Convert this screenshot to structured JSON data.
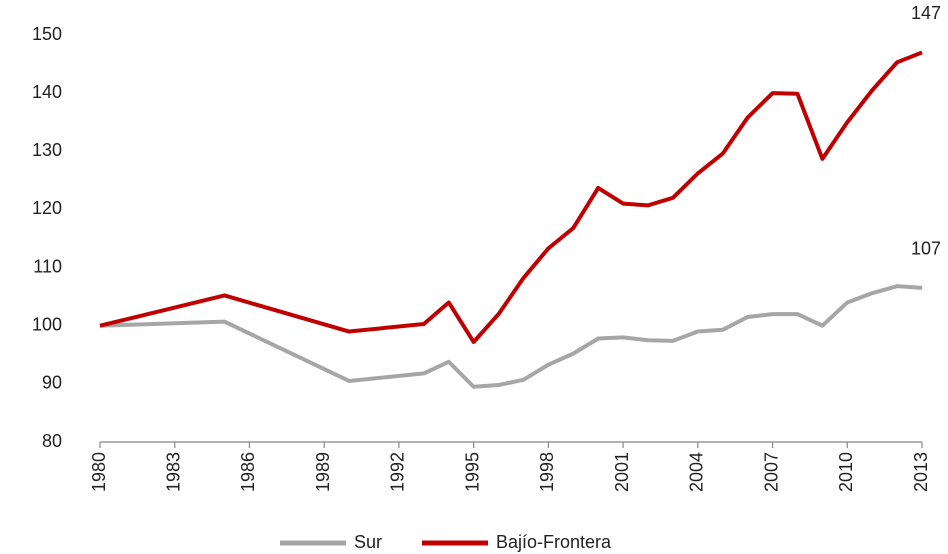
{
  "chart_data": {
    "type": "line",
    "x": [
      1980,
      1985,
      1990,
      1993,
      1994,
      1995,
      1996,
      1997,
      1998,
      1999,
      2000,
      2001,
      2002,
      2003,
      2004,
      2005,
      2006,
      2007,
      2008,
      2009,
      2010,
      2011,
      2012,
      2013
    ],
    "series": [
      {
        "name": "Sur",
        "color": "#a6a6a6",
        "values": [
          100,
          100.7,
          90.5,
          91.8,
          93.8,
          89.5,
          89.8,
          90.7,
          93.3,
          95.2,
          97.8,
          98,
          97.5,
          97.4,
          99,
          99.3,
          101.5,
          102,
          102,
          100,
          104,
          105.6,
          106.8,
          106.5
        ],
        "value_labels": [
          null,
          null,
          null,
          null,
          null,
          null,
          null,
          null,
          null,
          null,
          null,
          null,
          null,
          null,
          null,
          null,
          null,
          null,
          null,
          null,
          null,
          null,
          null,
          "107"
        ]
      },
      {
        "name": "Bajío-Frontera",
        "color": "#c00000",
        "values": [
          100,
          105.2,
          99,
          100.3,
          104,
          97.2,
          102,
          108.2,
          113.3,
          116.8,
          123.7,
          121,
          120.7,
          122,
          126.2,
          129.6,
          135.8,
          140,
          139.9,
          128.7,
          135,
          140.5,
          145.3,
          147
        ],
        "value_labels": [
          null,
          null,
          null,
          null,
          null,
          null,
          null,
          null,
          null,
          null,
          null,
          null,
          null,
          null,
          null,
          null,
          null,
          null,
          null,
          null,
          null,
          null,
          null,
          "147"
        ]
      }
    ],
    "xlim": [
      1980,
      2013
    ],
    "xticks": [
      1980,
      1983,
      1986,
      1989,
      1992,
      1995,
      1998,
      2001,
      2004,
      2007,
      2010,
      2013
    ],
    "ylim": [
      80,
      150
    ],
    "yticks": [
      80,
      90,
      100,
      110,
      120,
      130,
      140,
      150
    ],
    "grid": false,
    "legend": "bottom"
  }
}
